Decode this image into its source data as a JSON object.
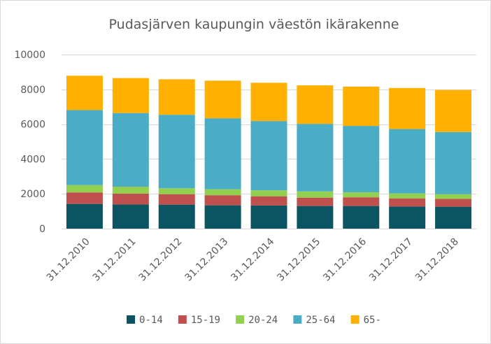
{
  "chart_data": {
    "type": "bar",
    "stacked": true,
    "title": "Pudasjärven kaupungin väestön ikärakenne",
    "xlabel": "",
    "ylabel": "",
    "ylim": [
      0,
      10000
    ],
    "yticks": [
      0,
      2000,
      4000,
      6000,
      8000,
      10000
    ],
    "yticks_labels": [
      "0",
      "2000",
      "4000",
      "6000",
      "8000",
      "10000"
    ],
    "grid": true,
    "legend_position": "bottom",
    "categories": [
      "31.12.2010",
      "31.12.2011",
      "31.12.2012",
      "31.12.2013",
      "31.12.2014",
      "31.12.2015",
      "31.12.2016",
      "31.12.2017",
      "31.12.2018"
    ],
    "series": [
      {
        "name": "0-14",
        "color": "#0b5563",
        "values": [
          1420,
          1390,
          1380,
          1340,
          1330,
          1300,
          1300,
          1270,
          1260
        ]
      },
      {
        "name": "15-19",
        "color": "#c0504d",
        "values": [
          660,
          620,
          600,
          580,
          530,
          480,
          500,
          470,
          450
        ]
      },
      {
        "name": "20-24",
        "color": "#92d050",
        "values": [
          420,
          400,
          340,
          340,
          340,
          360,
          290,
          280,
          270
        ]
      },
      {
        "name": "25-64",
        "color": "#4bacc6",
        "values": [
          4310,
          4230,
          4220,
          4080,
          3980,
          3880,
          3810,
          3700,
          3570
        ]
      },
      {
        "name": "65-",
        "color": "#ffb000",
        "values": [
          1970,
          2010,
          2040,
          2160,
          2200,
          2210,
          2260,
          2360,
          2420
        ]
      }
    ]
  }
}
